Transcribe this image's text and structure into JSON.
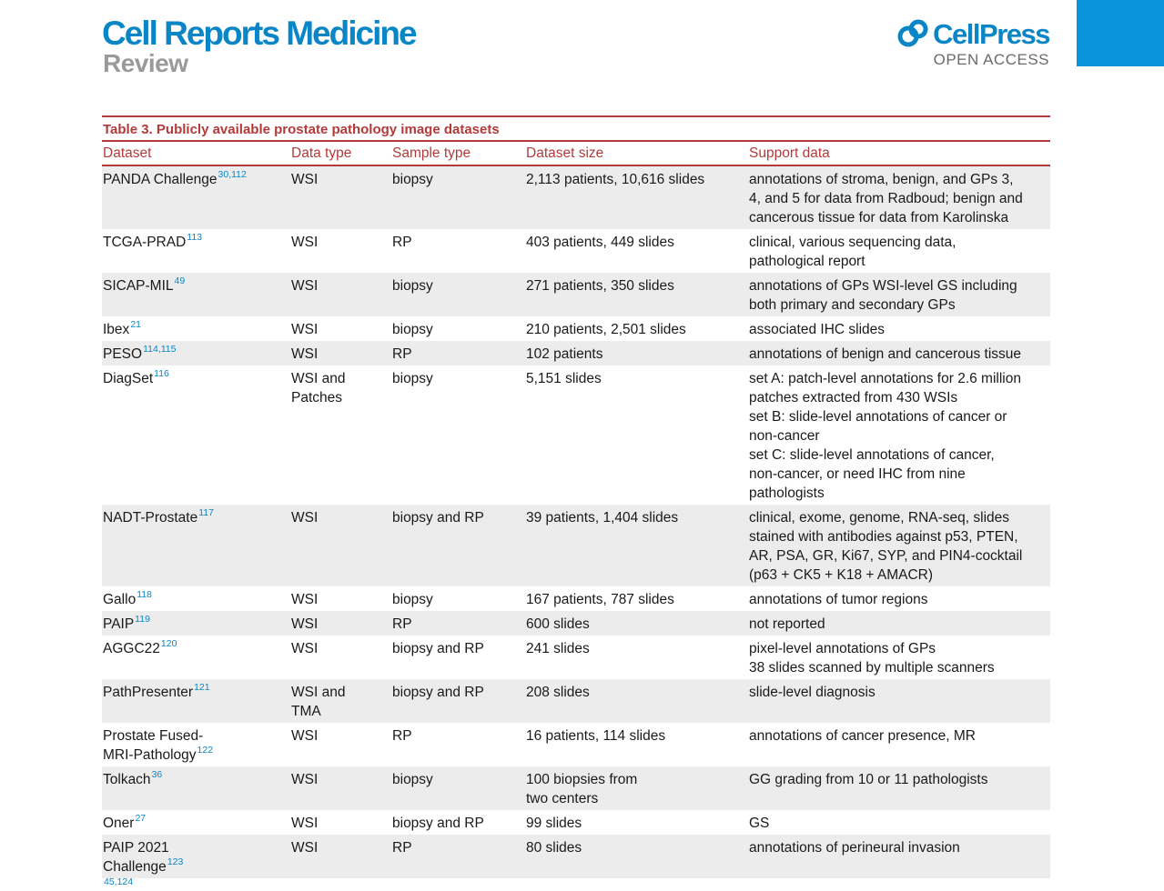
{
  "header": {
    "journal": "Cell Reports Medicine",
    "section": "Review",
    "publisher": "CellPress",
    "publisher_sub": "OPEN ACCESS",
    "logo_icon": "cellpress-logo-icon",
    "accent_color": "#0a86c6",
    "table_color": "#b33a3a"
  },
  "table": {
    "caption": "Table 3.  Publicly available prostate pathology image datasets",
    "columns": [
      "Dataset",
      "Data type",
      "Sample type",
      "Dataset size",
      "Support data"
    ],
    "rows": [
      {
        "dataset": "PANDA Challenge",
        "ref": "30,112",
        "data_type": "WSI",
        "sample_type": "biopsy",
        "size": "2,113 patients, 10,616 slides",
        "support": "annotations of stroma, benign, and GPs 3,\n4, and 5 for data from Radboud; benign and\ncancerous tissue for data from Karolinska"
      },
      {
        "dataset": "TCGA-PRAD",
        "ref": "113",
        "data_type": "WSI",
        "sample_type": "RP",
        "size": "403 patients, 449 slides",
        "support": "clinical, various sequencing data,\npathological report"
      },
      {
        "dataset": "SICAP-MIL",
        "ref": "49",
        "data_type": "WSI",
        "sample_type": "biopsy",
        "size": "271 patients, 350 slides",
        "support": "annotations of GPs WSI-level GS including\nboth primary and secondary GPs"
      },
      {
        "dataset": "Ibex",
        "ref": "21",
        "data_type": "WSI",
        "sample_type": "biopsy",
        "size": "210 patients, 2,501 slides",
        "support": "associated IHC slides"
      },
      {
        "dataset": "PESO",
        "ref": "114,115",
        "data_type": "WSI",
        "sample_type": "RP",
        "size": "102 patients",
        "support": "annotations of benign and cancerous tissue"
      },
      {
        "dataset": "DiagSet",
        "ref": "116",
        "data_type": "WSI and\nPatches",
        "sample_type": "biopsy",
        "size": "5,151 slides",
        "support": "set A: patch-level annotations for 2.6 million\npatches extracted from 430 WSIs\nset B: slide-level annotations of cancer or\nnon-cancer\nset C: slide-level annotations of cancer,\nnon-cancer, or need IHC from nine\npathologists"
      },
      {
        "dataset": "NADT-Prostate",
        "ref": "117",
        "data_type": "WSI",
        "sample_type": "biopsy and RP",
        "size": "39 patients, 1,404 slides",
        "support": "clinical, exome, genome, RNA-seq, slides\nstained with antibodies against p53, PTEN,\nAR, PSA, GR, Ki67, SYP, and PIN4-cocktail\n(p63 + CK5 + K18 + AMACR)"
      },
      {
        "dataset": "Gallo",
        "ref": "118",
        "data_type": "WSI",
        "sample_type": "biopsy",
        "size": "167 patients, 787 slides",
        "support": "annotations of tumor regions"
      },
      {
        "dataset": "PAIP",
        "ref": "119",
        "data_type": "WSI",
        "sample_type": "RP",
        "size": "600 slides",
        "support": "not reported"
      },
      {
        "dataset": "AGGC22",
        "ref": "120",
        "data_type": "WSI",
        "sample_type": "biopsy and RP",
        "size": "241 slides",
        "support": "pixel-level annotations of GPs\n38 slides scanned by multiple scanners"
      },
      {
        "dataset": "PathPresenter",
        "ref": "121",
        "data_type": "WSI and\nTMA",
        "sample_type": "biopsy and RP",
        "size": "208 slides",
        "support": "slide-level diagnosis"
      },
      {
        "dataset": "Prostate Fused-\nMRI-Pathology",
        "ref": "122",
        "data_type": "WSI",
        "sample_type": "RP",
        "size": "16 patients, 114 slides",
        "support": "annotations of cancer presence, MR"
      },
      {
        "dataset": "Tolkach",
        "ref": "36",
        "data_type": "WSI",
        "sample_type": "biopsy",
        "size": "100 biopsies from\ntwo centers",
        "support": "GG grading from 10 or 11 pathologists"
      },
      {
        "dataset": "Oner",
        "ref": "27",
        "data_type": "WSI",
        "sample_type": "biopsy and RP",
        "size": "99 slides",
        "support": "GS"
      },
      {
        "dataset": "PAIP 2021\nChallenge",
        "ref": "123",
        "data_type": "WSI",
        "sample_type": "RP",
        "size": "80 slides",
        "support": "annotations of perineural invasion"
      }
    ],
    "cut_row_ref": "45,124"
  }
}
